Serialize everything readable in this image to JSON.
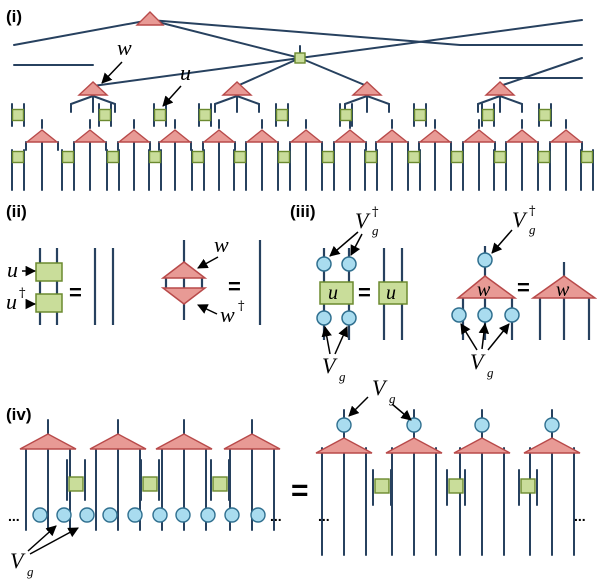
{
  "colors": {
    "line": "#27415f",
    "isometry_fill": "#e89a95",
    "isometry_stroke": "#b84a4a",
    "disentangler_fill": "#c9dd9a",
    "disentangler_stroke": "#6b8a2f",
    "vg_fill": "#a9dcef",
    "vg_stroke": "#2f6f8f"
  },
  "panels": {
    "i": {
      "label": "(i)",
      "w_label": "w",
      "u_label": "u"
    },
    "ii": {
      "label": "(ii)",
      "u": "u",
      "u_dag": "u",
      "dagger": "†",
      "w": "w",
      "w_dag": "w",
      "equals": "="
    },
    "iii": {
      "label": "(iii)",
      "vg": "V",
      "sub_g": "g",
      "dagger": "†",
      "u": "u",
      "w": "w",
      "equals": "="
    },
    "iv": {
      "label": "(iv)",
      "vg": "V",
      "sub_g": "g",
      "equals": "=",
      "dots": "..."
    }
  },
  "icons": [
    "isometry-triangle",
    "disentangler-square",
    "vg-circle",
    "arrow"
  ]
}
